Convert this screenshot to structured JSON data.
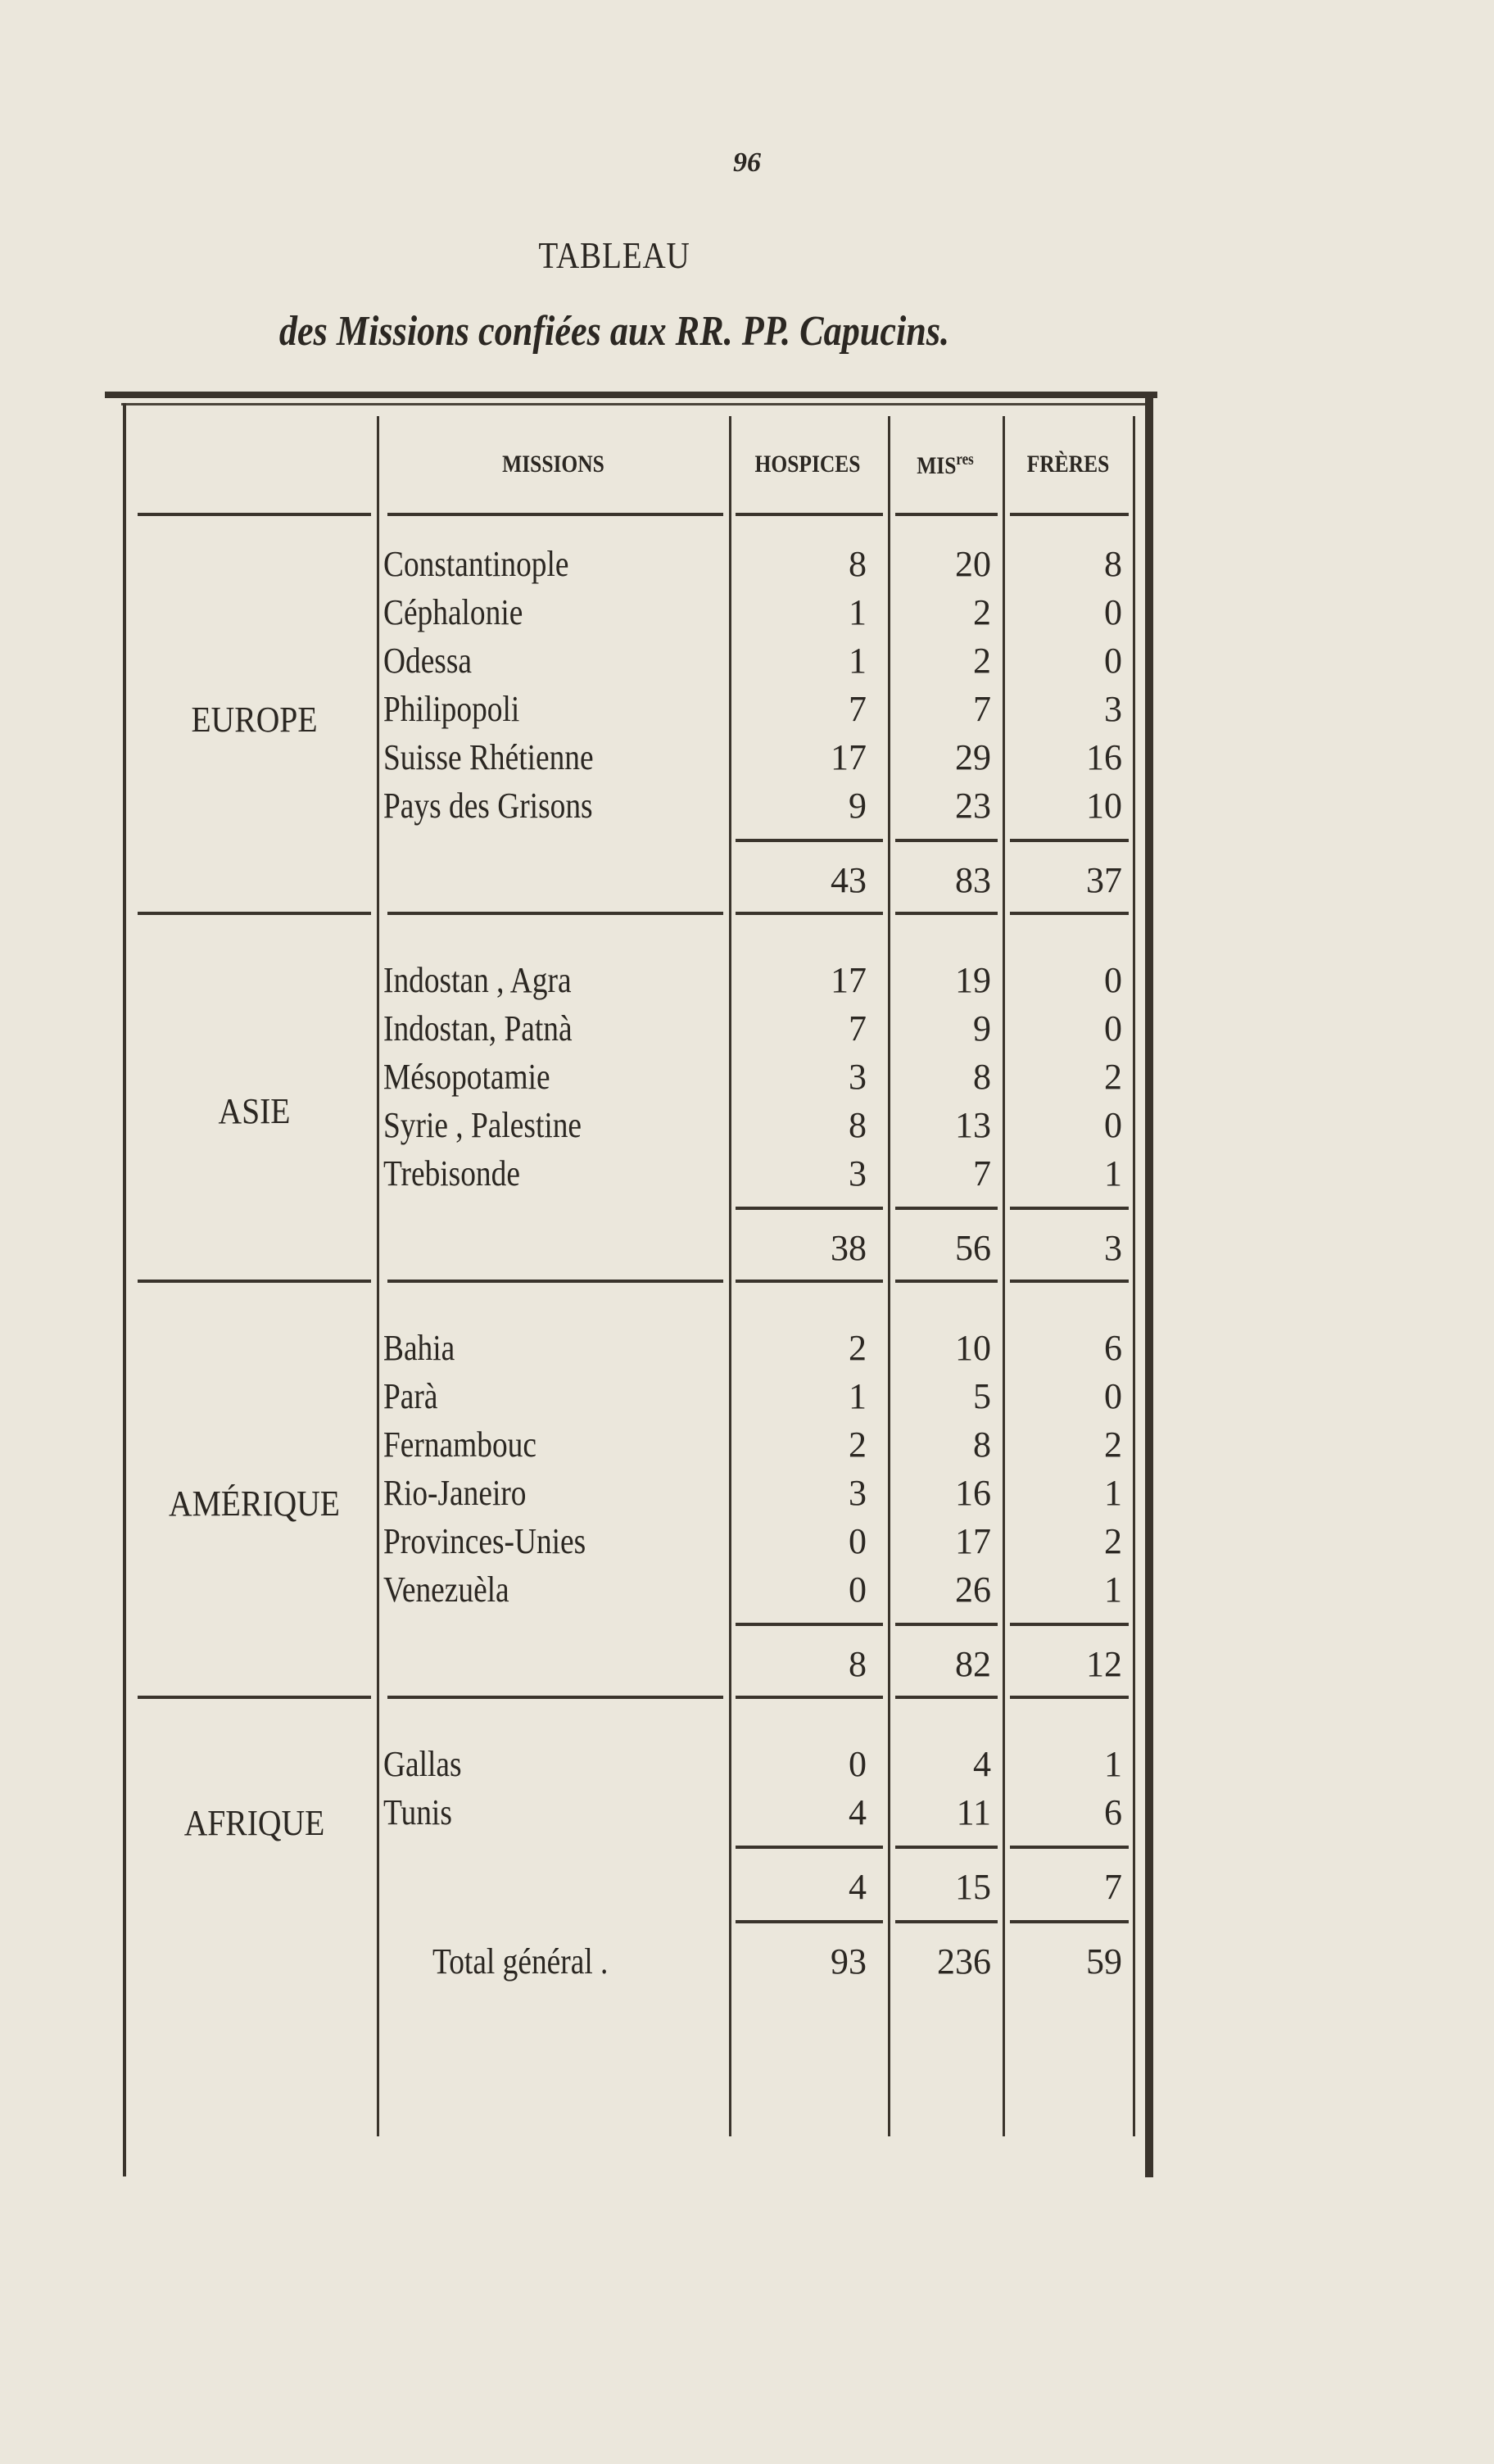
{
  "page_number": "96",
  "title": "TABLEAU",
  "subtitle": "des Missions confiées aux RR. PP. Capucins.",
  "table": {
    "headers": {
      "missions": "MISSIONS",
      "hospices": "HOSPICES",
      "missionnaires": "MIS",
      "missionnaires_sup": "res",
      "freres": "FRÈRES"
    },
    "regions": [
      {
        "name": "EUROPE",
        "rows": [
          {
            "mission": "Constantinople",
            "hospices": "8",
            "missionnaires": "20",
            "freres": "8"
          },
          {
            "mission": "Céphalonie",
            "hospices": "1",
            "missionnaires": "2",
            "freres": "0"
          },
          {
            "mission": "Odessa",
            "hospices": "1",
            "missionnaires": "2",
            "freres": "0"
          },
          {
            "mission": "Philipopoli",
            "hospices": "7",
            "missionnaires": "7",
            "freres": "3"
          },
          {
            "mission": "Suisse Rhétienne",
            "hospices": "17",
            "missionnaires": "29",
            "freres": "16"
          },
          {
            "mission": "Pays des Grisons",
            "hospices": "9",
            "missionnaires": "23",
            "freres": "10"
          }
        ],
        "subtotal": {
          "hospices": "43",
          "missionnaires": "83",
          "freres": "37"
        }
      },
      {
        "name": "ASIE",
        "rows": [
          {
            "mission": "Indostan , Agra",
            "hospices": "17",
            "missionnaires": "19",
            "freres": "0"
          },
          {
            "mission": "Indostan, Patnà",
            "hospices": "7",
            "missionnaires": "9",
            "freres": "0"
          },
          {
            "mission": "Mésopotamie",
            "hospices": "3",
            "missionnaires": "8",
            "freres": "2"
          },
          {
            "mission": "Syrie , Palestine",
            "hospices": "8",
            "missionnaires": "13",
            "freres": "0"
          },
          {
            "mission": "Trebisonde",
            "hospices": "3",
            "missionnaires": "7",
            "freres": "1"
          }
        ],
        "subtotal": {
          "hospices": "38",
          "missionnaires": "56",
          "freres": "3"
        }
      },
      {
        "name": "AMÉRIQUE",
        "rows": [
          {
            "mission": "Bahia",
            "hospices": "2",
            "missionnaires": "10",
            "freres": "6"
          },
          {
            "mission": "Parà",
            "hospices": "1",
            "missionnaires": "5",
            "freres": "0"
          },
          {
            "mission": "Fernambouc",
            "hospices": "2",
            "missionnaires": "8",
            "freres": "2"
          },
          {
            "mission": "Rio-Janeiro",
            "hospices": "3",
            "missionnaires": "16",
            "freres": "1"
          },
          {
            "mission": "Provinces-Unies",
            "hospices": "0",
            "missionnaires": "17",
            "freres": "2"
          },
          {
            "mission": "Venezuèla",
            "hospices": "0",
            "missionnaires": "26",
            "freres": "1"
          }
        ],
        "subtotal": {
          "hospices": "8",
          "missionnaires": "82",
          "freres": "12"
        }
      },
      {
        "name": "AFRIQUE",
        "rows": [
          {
            "mission": "Gallas",
            "hospices": "0",
            "missionnaires": "4",
            "freres": "1"
          },
          {
            "mission": "Tunis",
            "hospices": "4",
            "missionnaires": "11",
            "freres": "6"
          }
        ],
        "subtotal": {
          "hospices": "4",
          "missionnaires": "15",
          "freres": "7"
        }
      }
    ],
    "total": {
      "label": "Total général .",
      "hospices": "93",
      "missionnaires": "236",
      "freres": "59"
    }
  }
}
